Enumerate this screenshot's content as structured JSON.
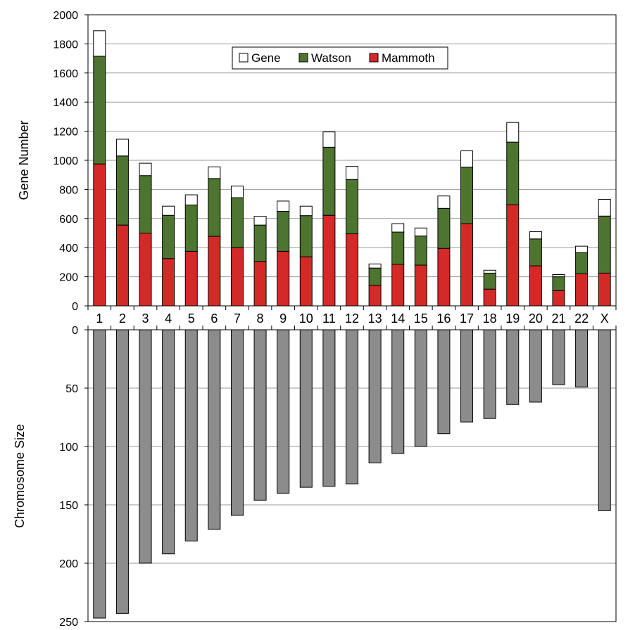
{
  "chart_data": [
    {
      "type": "bar",
      "stacked": true,
      "ylabel": "Gene Number",
      "ylim": [
        0,
        2000
      ],
      "yticks": [
        0,
        200,
        400,
        600,
        800,
        1000,
        1200,
        1400,
        1600,
        1800,
        2000
      ],
      "grid": true,
      "legend_position": "top-center",
      "categories": [
        "1",
        "2",
        "3",
        "4",
        "5",
        "6",
        "7",
        "8",
        "9",
        "10",
        "11",
        "12",
        "13",
        "14",
        "15",
        "16",
        "17",
        "18",
        "19",
        "20",
        "21",
        "22",
        "X"
      ],
      "series": [
        {
          "name": "Mammoth",
          "color": "#d42a27",
          "values": [
            975,
            555,
            500,
            325,
            375,
            478,
            400,
            305,
            375,
            337,
            622,
            495,
            142,
            285,
            280,
            395,
            565,
            115,
            695,
            275,
            105,
            220,
            225
          ]
        },
        {
          "name": "Watson",
          "color": "#4e7530",
          "values": [
            740,
            475,
            395,
            297,
            318,
            397,
            343,
            250,
            275,
            283,
            468,
            373,
            118,
            222,
            200,
            275,
            388,
            110,
            430,
            185,
            95,
            145,
            392
          ]
        },
        {
          "name": "Gene",
          "color": "#ffffff",
          "values": [
            175,
            115,
            85,
            63,
            70,
            80,
            80,
            60,
            70,
            65,
            105,
            90,
            28,
            58,
            55,
            85,
            112,
            20,
            135,
            50,
            15,
            45,
            115
          ]
        }
      ]
    },
    {
      "type": "bar",
      "orientation": "downward",
      "ylabel": "Chromosome Size",
      "ylim": [
        0,
        250
      ],
      "yticks": [
        0,
        50,
        100,
        150,
        200,
        250
      ],
      "grid": true,
      "color": "#8c8c8c",
      "categories": [
        "1",
        "2",
        "3",
        "4",
        "5",
        "6",
        "7",
        "8",
        "9",
        "10",
        "11",
        "12",
        "13",
        "14",
        "15",
        "16",
        "17",
        "18",
        "19",
        "20",
        "21",
        "22",
        "X"
      ],
      "values": [
        247,
        243,
        200,
        192,
        181,
        171,
        159,
        146,
        140,
        135,
        134,
        132,
        114,
        106,
        100,
        89,
        79,
        76,
        64,
        62,
        47,
        49,
        155
      ]
    }
  ]
}
